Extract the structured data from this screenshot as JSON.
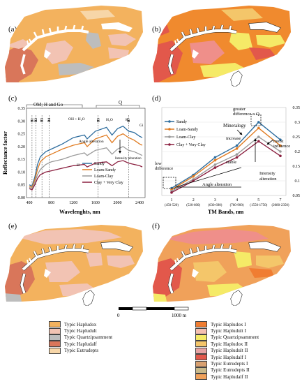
{
  "panels": {
    "a": "(a)",
    "b": "(b)",
    "c": "(c)",
    "d": "(d)",
    "e": "(e)",
    "f": "(f)"
  },
  "colors": {
    "bg_soil": "#f3b25e",
    "pink": "#f2c3b3",
    "gray": "#bdbdbd",
    "dark_salmon": "#d9765a",
    "peach": "#f7d6a8",
    "orange_b": "#f08a2e",
    "red_b": "#e2584b",
    "yellow_b": "#f5ea67",
    "rose_b": "#ef8f8a",
    "sandy": "#2e6d9e",
    "loam_sandy": "#e07b21",
    "loam_clay": "#9b9b9b",
    "clay": "#8b2040"
  },
  "chart_c": {
    "ylabel": "Reflectance factor",
    "xlabel": "Wavelenghts, nm",
    "yticks": [
      "0.00",
      "0.05",
      "0.10",
      "0.15",
      "0.20",
      "0.25",
      "0.30",
      "0.35"
    ],
    "xticks": [
      "400",
      "800",
      "1200",
      "1600",
      "2000",
      "2400"
    ],
    "bands": [
      "B1",
      "B2",
      "B3",
      "B4",
      "B5",
      "B7"
    ],
    "ann_om": "OM; H and Go",
    "ann_q": "Q",
    "ann_ohh2o": "OH + H₂O",
    "ann_h2o": "H₂O",
    "ann_k": "K",
    "ann_gi": "Gi",
    "ann_h": "H",
    "ann_angle": "Angle alteration",
    "ann_intensity": "Intensity alteration",
    "legend": [
      "Sandy",
      "Loam-Sandy",
      "Loam-Clay",
      "Clay + Very Clay"
    ]
  },
  "chart_d": {
    "xlabel": "TM Bands, nm",
    "xticks": [
      "1",
      "2",
      "3",
      "4",
      "5",
      "7"
    ],
    "xsub": [
      "(450-520)",
      "(520-600)",
      "(630-690)",
      "(760-900)",
      "(1550-1750)",
      "(2080-2350)"
    ],
    "yticks": [
      "0.05",
      "0.1",
      "0.15",
      "0.2",
      "0.25",
      "0.3",
      "0.35"
    ],
    "legend": [
      "Sandy",
      "Loam-Sandy",
      "Loam-Clay",
      "Clay + Very Clay"
    ],
    "ann_greater": "greater difference = Q",
    "ann_mineralogy": "Mineralogy",
    "ann_moist": "moist influence",
    "ann_increase": "increase",
    "ann_stable": "stable",
    "ann_low": "low difference",
    "ann_angle": "Angle alteration",
    "ann_intensity": "Intensity alteration"
  },
  "chart_data": [
    {
      "type": "line",
      "xlabel": "Wavelenghts, nm",
      "ylabel": "Reflectance factor",
      "xlim": [
        350,
        2500
      ],
      "ylim": [
        0.0,
        0.35
      ],
      "x": [
        400,
        450,
        500,
        550,
        600,
        700,
        800,
        900,
        1000,
        1200,
        1400,
        1450,
        1600,
        1800,
        1900,
        2000,
        2100,
        2200,
        2300,
        2400,
        2450
      ],
      "series": [
        {
          "name": "Sandy",
          "values": [
            0.05,
            0.045,
            0.08,
            0.13,
            0.16,
            0.18,
            0.19,
            0.2,
            0.21,
            0.235,
            0.245,
            0.23,
            0.26,
            0.275,
            0.245,
            0.27,
            0.28,
            0.26,
            0.255,
            0.24,
            0.235
          ]
        },
        {
          "name": "Loam-Sandy",
          "values": [
            0.045,
            0.04,
            0.07,
            0.11,
            0.14,
            0.16,
            0.17,
            0.18,
            0.19,
            0.205,
            0.215,
            0.2,
            0.23,
            0.245,
            0.215,
            0.24,
            0.25,
            0.235,
            0.225,
            0.21,
            0.205
          ]
        },
        {
          "name": "Loam-Clay",
          "values": [
            0.04,
            0.035,
            0.06,
            0.09,
            0.11,
            0.13,
            0.14,
            0.145,
            0.15,
            0.165,
            0.175,
            0.165,
            0.185,
            0.195,
            0.17,
            0.19,
            0.2,
            0.185,
            0.18,
            0.17,
            0.165
          ]
        },
        {
          "name": "Clay + Very Clay",
          "values": [
            0.035,
            0.03,
            0.05,
            0.075,
            0.09,
            0.1,
            0.105,
            0.11,
            0.115,
            0.125,
            0.13,
            0.12,
            0.135,
            0.14,
            0.125,
            0.14,
            0.145,
            0.135,
            0.13,
            0.125,
            0.12
          ]
        }
      ]
    },
    {
      "type": "line",
      "xlabel": "TM Bands, nm",
      "categories": [
        "1",
        "2",
        "3",
        "4",
        "5",
        "7"
      ],
      "ylim": [
        0.05,
        0.35
      ],
      "series": [
        {
          "name": "Sandy",
          "values": [
            0.075,
            0.12,
            0.18,
            0.22,
            0.3,
            0.24
          ]
        },
        {
          "name": "Loam-Sandy",
          "values": [
            0.07,
            0.115,
            0.17,
            0.21,
            0.28,
            0.22
          ]
        },
        {
          "name": "Loam-Clay",
          "values": [
            0.065,
            0.105,
            0.155,
            0.19,
            0.25,
            0.2
          ]
        },
        {
          "name": "Clay + Very Clay",
          "values": [
            0.06,
            0.1,
            0.145,
            0.18,
            0.235,
            0.185
          ]
        }
      ]
    }
  ],
  "scalebar": {
    "zero": "0",
    "label": "1000 m"
  },
  "legend_left": [
    {
      "label": "Typic Hapludox",
      "color": "#f3b25e"
    },
    {
      "label": "Typic Hapludult",
      "color": "#f2c3b3"
    },
    {
      "label": "Typic Quartzipsamment",
      "color": "#bdbdbd"
    },
    {
      "label": "Typic Hapludalf",
      "color": "#d9765a"
    },
    {
      "label": "Typic Eutrudepts",
      "color": "#f7d6a8"
    }
  ],
  "legend_right": [
    {
      "label": "Typic Hapludox I",
      "color": "#f07d32"
    },
    {
      "label": "Typic Hapludult I",
      "color": "#f5c0b0"
    },
    {
      "label": "Typic Quartzipsamment",
      "color": "#f5ea67"
    },
    {
      "label": "Typic Hapludox II",
      "color": "#f4c66a"
    },
    {
      "label": "Typic Hapludult II",
      "color": "#e7a3a3"
    },
    {
      "label": "Typic Hapludalf I",
      "color": "#e2584b"
    },
    {
      "label": "Typic Eutrudepts I",
      "color": "#d8a070"
    },
    {
      "label": "Typic Eutrudepts II",
      "color": "#c9b98a"
    },
    {
      "label": "Typic Hapludalf II",
      "color": "#f0a15a"
    }
  ]
}
